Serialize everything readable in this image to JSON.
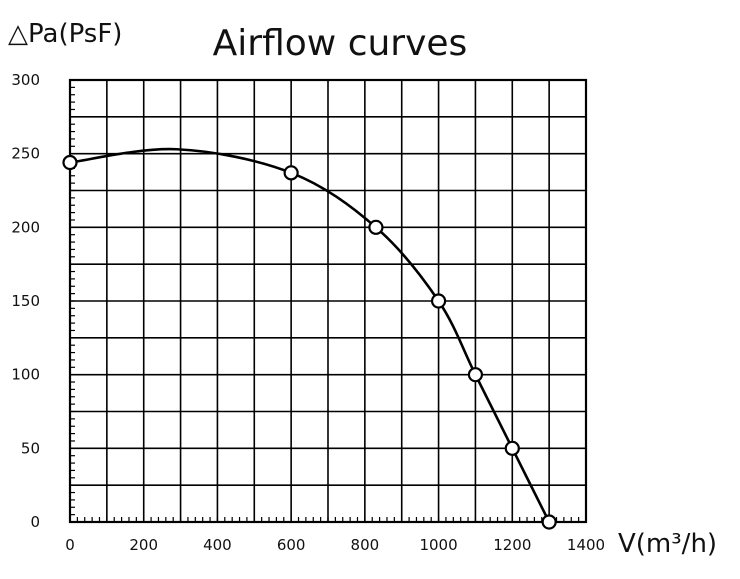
{
  "chart_data": {
    "type": "line",
    "title": "Airflow curves",
    "xlabel": "V(m³/h)",
    "ylabel": "△Pa(PsF)",
    "xlim": [
      0,
      1400
    ],
    "ylim": [
      0,
      300
    ],
    "x_ticks": [
      "0",
      "200",
      "400",
      "600",
      "800",
      "1000",
      "1200",
      "1400"
    ],
    "y_ticks": [
      "0",
      "50",
      "100",
      "150",
      "200",
      "250",
      "300"
    ],
    "grid": true,
    "series": [
      {
        "x": [
          0,
          600,
          830,
          1000,
          1100,
          1200,
          1300
        ],
        "y": [
          244,
          237,
          200,
          150,
          100,
          50,
          0
        ]
      }
    ],
    "curve_peak": {
      "x": 290,
      "y": 253
    },
    "colors": {
      "line": "#000000",
      "grid": "#000000",
      "background": "#ffffff"
    }
  }
}
